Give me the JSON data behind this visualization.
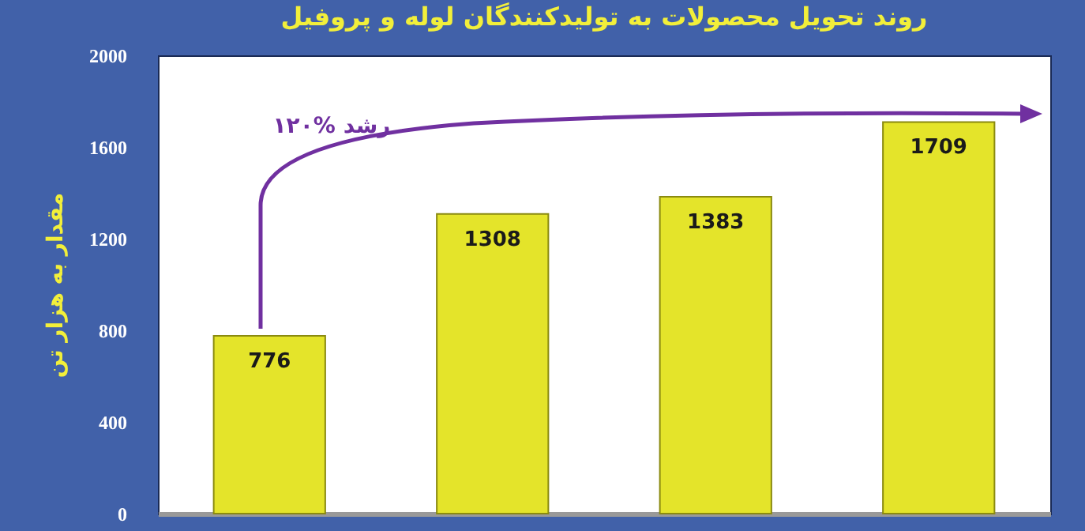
{
  "chart_data": {
    "type": "bar",
    "title": "روند تحویل محصولات به تولیدکنندگان لوله و پروفیل",
    "ylabel": "مقدار به هزار تن",
    "categories": [
      null,
      null,
      null,
      null
    ],
    "values": [
      776,
      1308,
      1383,
      1709
    ],
    "color": "#e4e42a",
    "ylim": [
      0,
      2000
    ],
    "yticks": [
      0,
      400,
      800,
      1200,
      1600,
      2000
    ],
    "data_labels": true,
    "grid": false,
    "annotations": [
      "۱۲۰% رشد"
    ]
  }
}
